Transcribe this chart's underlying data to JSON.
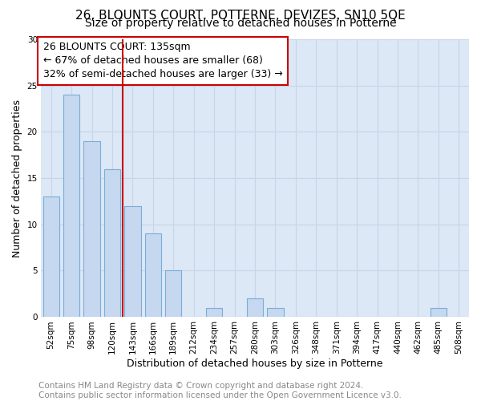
{
  "title": "26, BLOUNTS COURT, POTTERNE, DEVIZES, SN10 5QE",
  "subtitle": "Size of property relative to detached houses in Potterne",
  "xlabel": "Distribution of detached houses by size in Potterne",
  "ylabel": "Number of detached properties",
  "categories": [
    "52sqm",
    "75sqm",
    "98sqm",
    "120sqm",
    "143sqm",
    "166sqm",
    "189sqm",
    "212sqm",
    "234sqm",
    "257sqm",
    "280sqm",
    "303sqm",
    "326sqm",
    "348sqm",
    "371sqm",
    "394sqm",
    "417sqm",
    "440sqm",
    "462sqm",
    "485sqm",
    "508sqm"
  ],
  "values": [
    13,
    24,
    19,
    16,
    12,
    9,
    5,
    0,
    1,
    0,
    2,
    1,
    0,
    0,
    0,
    0,
    0,
    0,
    0,
    1,
    0
  ],
  "bar_color": "#c5d8f0",
  "bar_edge_color": "#7aadda",
  "vline_x_idx": 4,
  "vline_color": "#cc0000",
  "annotation_lines": [
    "26 BLOUNTS COURT: 135sqm",
    "← 67% of detached houses are smaller (68)",
    "32% of semi-detached houses are larger (33) →"
  ],
  "annotation_box_edgecolor": "#cc0000",
  "ylim": [
    0,
    30
  ],
  "yticks": [
    0,
    5,
    10,
    15,
    20,
    25,
    30
  ],
  "grid_color": "#c8d4e8",
  "background_color": "#dce8f5",
  "footer_text": "Contains HM Land Registry data © Crown copyright and database right 2024.\nContains public sector information licensed under the Open Government Licence v3.0.",
  "title_fontsize": 11,
  "subtitle_fontsize": 10,
  "xlabel_fontsize": 9,
  "ylabel_fontsize": 9,
  "tick_fontsize": 7.5,
  "annotation_fontsize": 9,
  "footer_fontsize": 7.5
}
